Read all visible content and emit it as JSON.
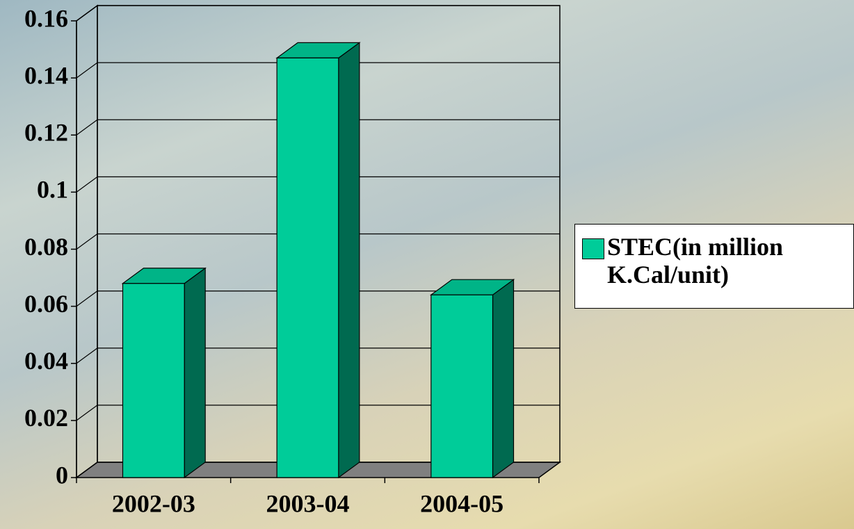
{
  "chart_data": {
    "type": "bar3d",
    "categories": [
      "2002-03",
      "2003-04",
      "2004-05"
    ],
    "series": [
      {
        "name": "STEC(in million K.Cal/unit)",
        "color": "#00cc99",
        "values": [
          0.068,
          0.147,
          0.064
        ]
      }
    ],
    "ylim": [
      0,
      0.16
    ],
    "yticks": [
      0,
      0.02,
      0.04,
      0.06,
      0.08,
      0.1,
      0.12,
      0.14,
      0.16
    ],
    "grid": true,
    "legend": "right"
  }
}
